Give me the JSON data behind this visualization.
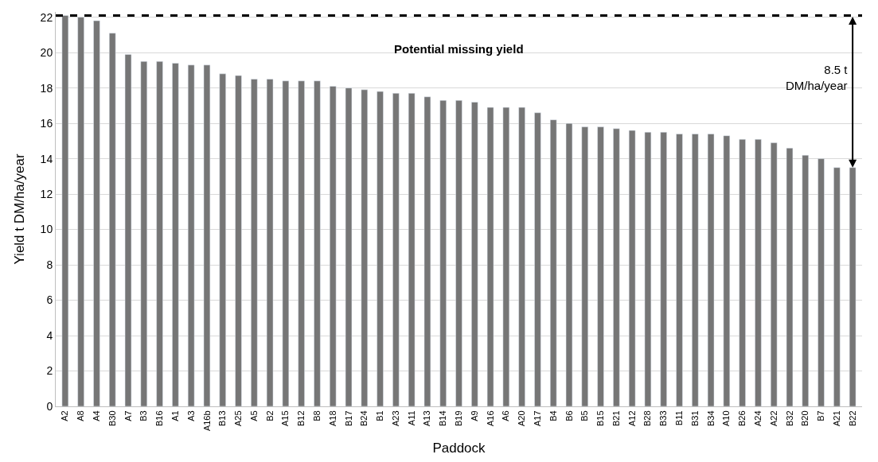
{
  "chart_data": {
    "type": "bar",
    "xlabel": "Paddock",
    "ylabel": "Yield t DM/ha/year",
    "categories": [
      "A2",
      "A8",
      "A4",
      "B30",
      "A7",
      "B3",
      "B16",
      "A1",
      "A3",
      "A16b",
      "B13",
      "A25",
      "A5",
      "B2",
      "A15",
      "B12",
      "B8",
      "A18",
      "B17",
      "B24",
      "B1",
      "A23",
      "A11",
      "A13",
      "B14",
      "B19",
      "A9",
      "A16",
      "A6",
      "A20",
      "A17",
      "B4",
      "B6",
      "B5",
      "B15",
      "B21",
      "A12",
      "B28",
      "B33",
      "B11",
      "B31",
      "B34",
      "A10",
      "B26",
      "A24",
      "A22",
      "B32",
      "B20",
      "B7",
      "A21",
      "B22"
    ],
    "values": [
      22.1,
      22.0,
      21.8,
      21.1,
      19.9,
      19.5,
      19.5,
      19.4,
      19.3,
      19.3,
      18.8,
      18.7,
      18.5,
      18.5,
      18.4,
      18.4,
      18.4,
      18.1,
      18.0,
      17.9,
      17.8,
      17.7,
      17.7,
      17.5,
      17.3,
      17.3,
      17.2,
      16.9,
      16.9,
      16.9,
      16.6,
      16.2,
      16.0,
      15.8,
      15.8,
      15.7,
      15.6,
      15.5,
      15.5,
      15.4,
      15.4,
      15.4,
      15.3,
      15.1,
      15.1,
      14.9,
      14.6,
      14.2,
      14.0,
      13.5,
      13.5
    ],
    "color": "#767676",
    "ylim": [
      0,
      22.3
    ],
    "yticks": [
      0,
      2,
      4,
      6,
      8,
      10,
      12,
      14,
      16,
      18,
      20,
      22
    ],
    "grid": "y",
    "ref_lines": [
      {
        "axis": "y",
        "value": 22.1,
        "color": "#000000",
        "line_style": "dashed"
      }
    ],
    "annotations": [
      "Potential missing yield",
      "8.5 t\nDM/ha/year"
    ]
  }
}
